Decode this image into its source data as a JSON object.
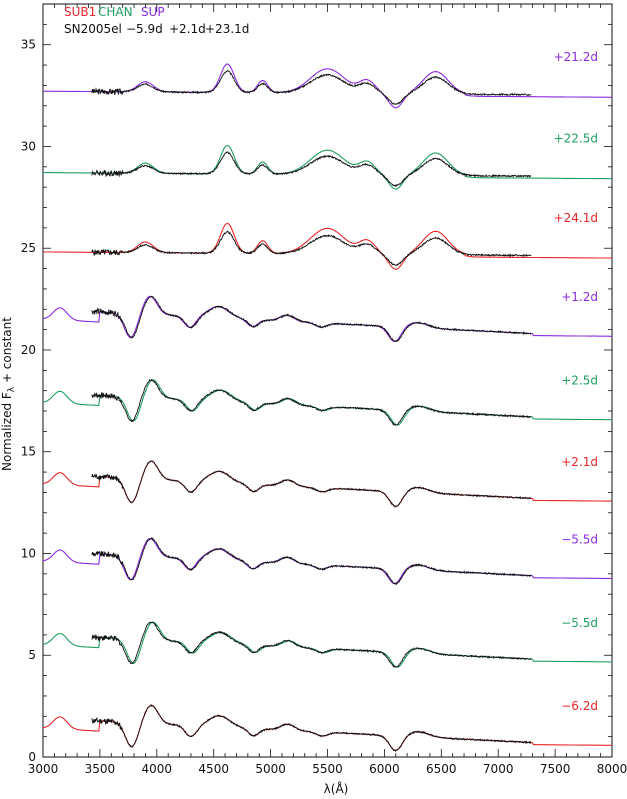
{
  "chart_data": {
    "type": "line",
    "xlabel": "λ(Å)",
    "ylabel": "Normalized F_λ + constant",
    "xlim": [
      3000,
      8000
    ],
    "ylim": [
      0,
      37
    ],
    "x_ticks": [
      3000,
      3500,
      4000,
      4500,
      5000,
      5500,
      6000,
      6500,
      7000,
      7500,
      8000
    ],
    "y_ticks": [
      0,
      5,
      10,
      15,
      20,
      25,
      30,
      35
    ],
    "grid": false,
    "legend": {
      "position": "top-left",
      "models": [
        {
          "label": "SUB1",
          "color": "#e8262a"
        },
        {
          "label": "CHAN",
          "color": "#1f9e5f"
        },
        {
          "label": "SUP",
          "color": "#8a2be2"
        }
      ],
      "object": {
        "label": "SN2005el",
        "color": "#111111"
      },
      "epochs": [
        "−5.9d",
        "+2.1d",
        "+23.1d"
      ]
    },
    "panels": [
      {
        "model": "SUP",
        "epoch_label": "+21.2d",
        "offset": 32.2,
        "late": true
      },
      {
        "model": "CHAN",
        "epoch_label": "+22.5d",
        "offset": 28.2,
        "late": true
      },
      {
        "model": "SUB1",
        "epoch_label": "+24.1d",
        "offset": 24.3,
        "late": true
      },
      {
        "model": "SUP",
        "epoch_label": "+1.2d",
        "offset": 20.4,
        "late": false
      },
      {
        "model": "CHAN",
        "epoch_label": "+2.5d",
        "offset": 16.3,
        "late": false
      },
      {
        "model": "SUB1",
        "epoch_label": "+2.1d",
        "offset": 12.3,
        "late": false
      },
      {
        "model": "SUP",
        "epoch_label": "−5.5d",
        "offset": 8.5,
        "late": false
      },
      {
        "model": "CHAN",
        "epoch_label": "−5.5d",
        "offset": 4.4,
        "late": false
      },
      {
        "model": "SUB1",
        "epoch_label": "−6.2d",
        "offset": 0.3,
        "late": false
      }
    ],
    "observed_range": [
      3430,
      7290
    ],
    "model_range": [
      3000,
      8000
    ]
  }
}
